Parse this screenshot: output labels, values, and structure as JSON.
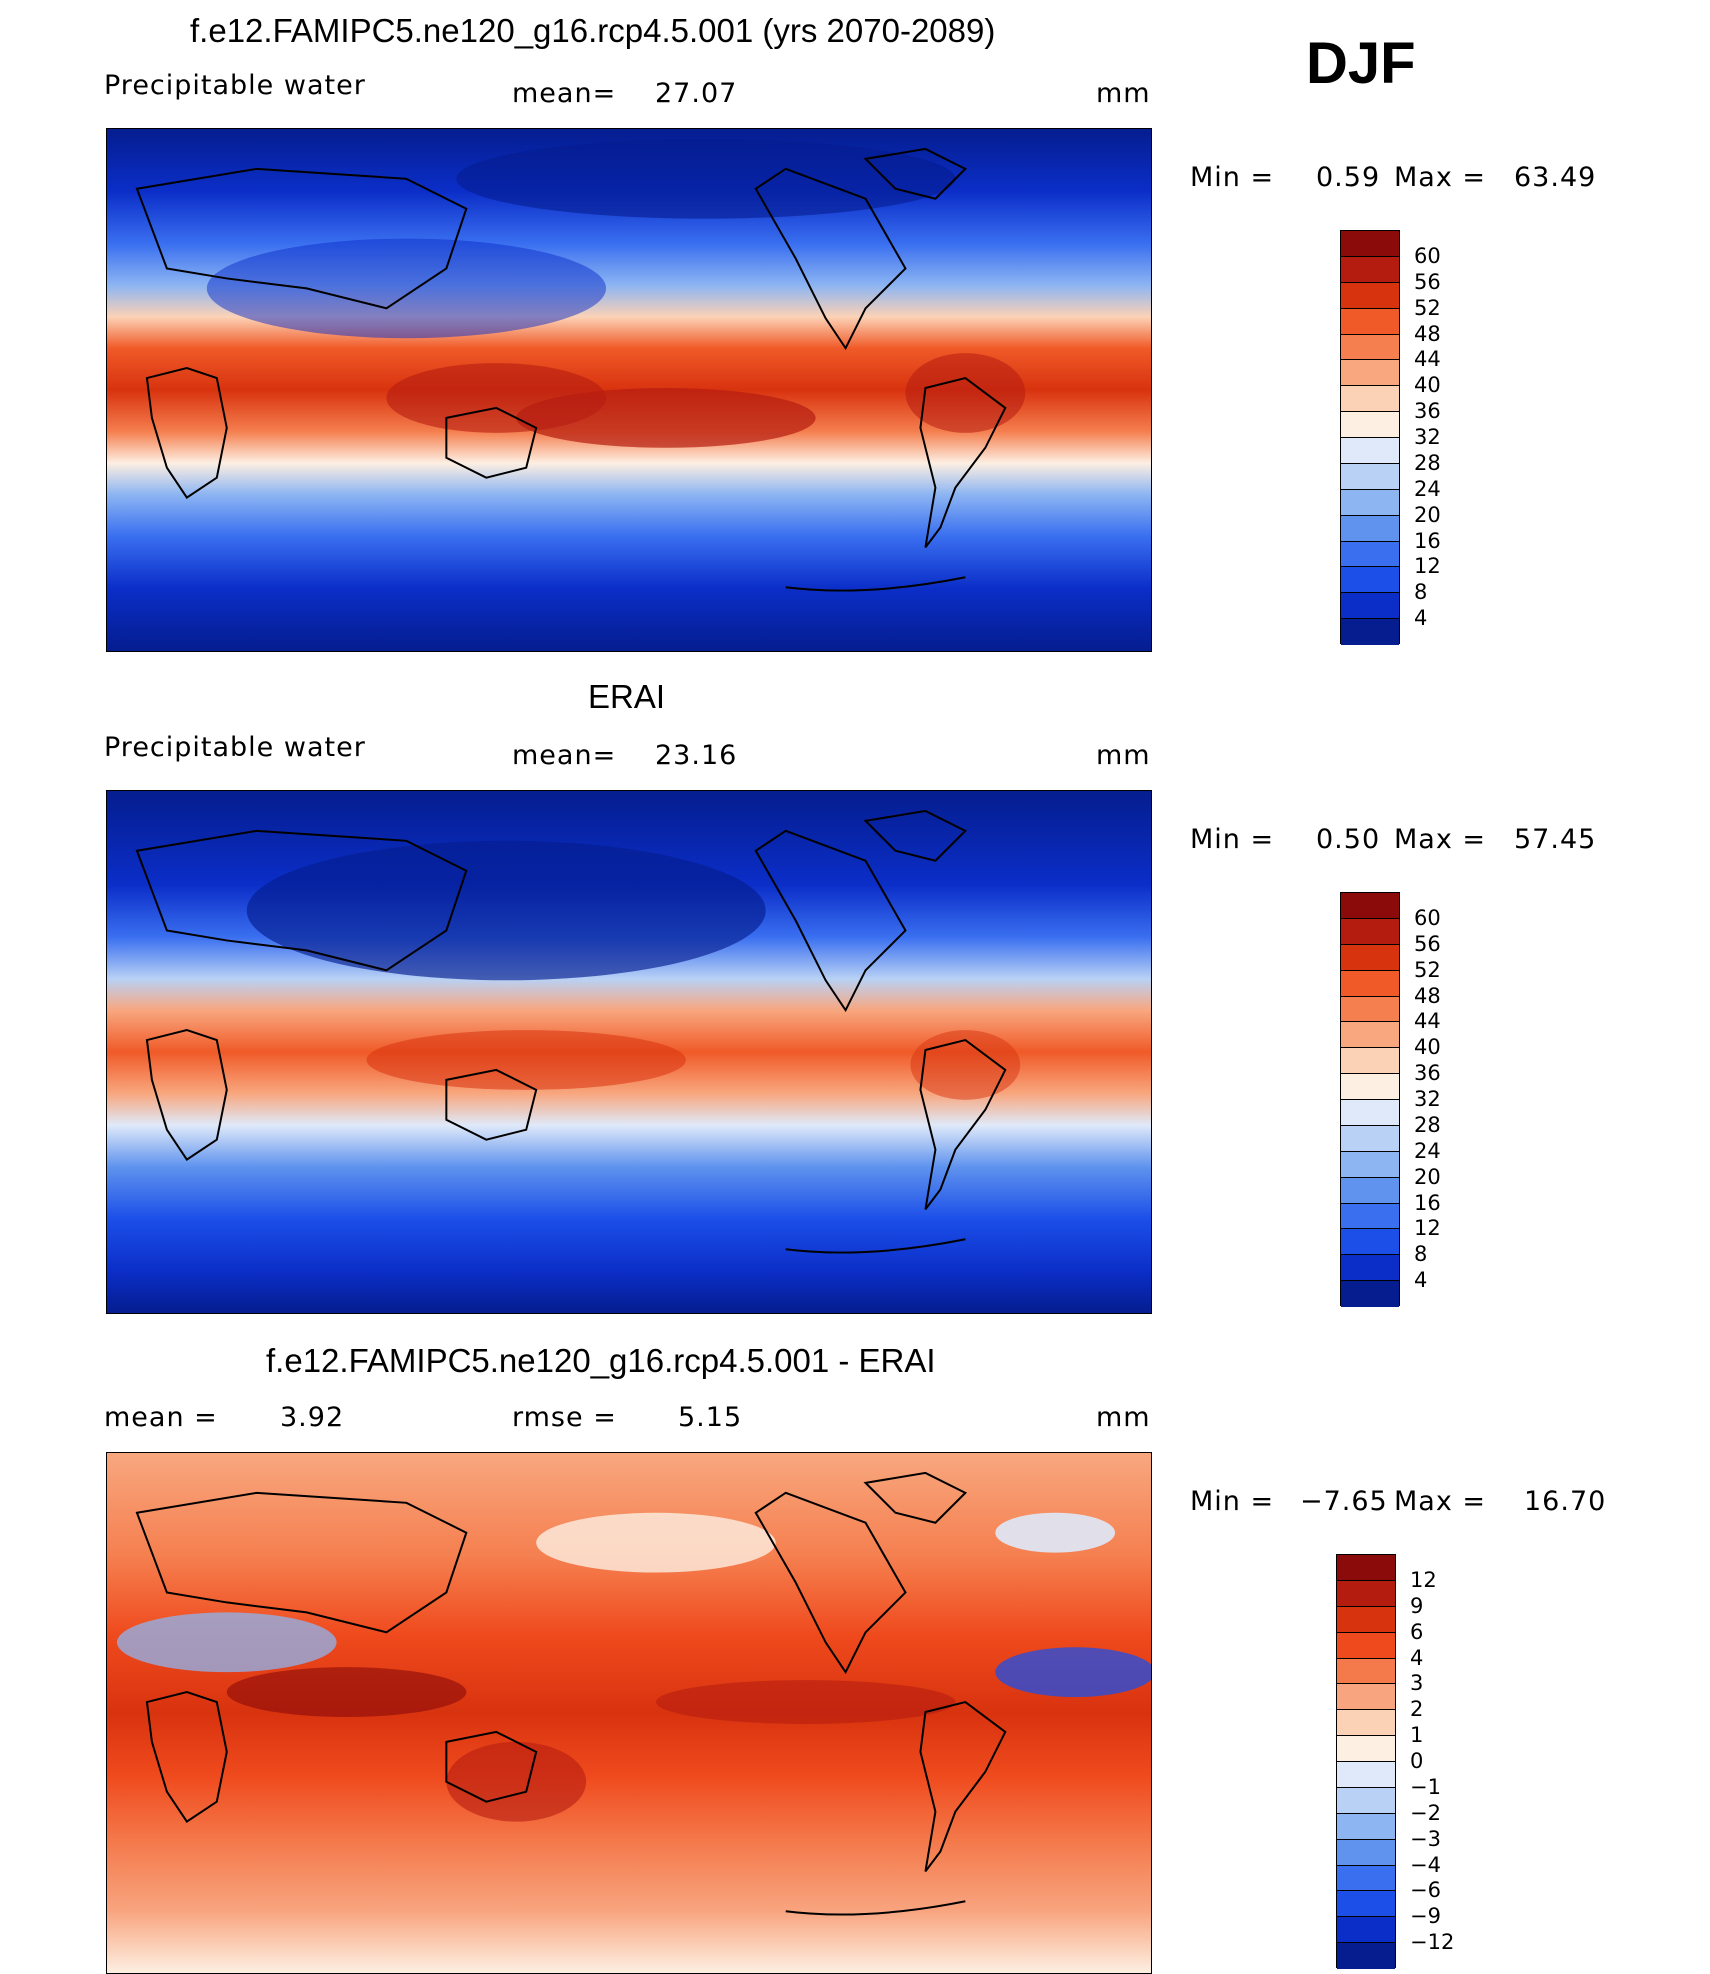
{
  "season": "DJF",
  "panels": [
    {
      "title": "f.e12.FAMIPC5.ne120_g16.rcp4.5.001 (yrs 2070-2089)",
      "left_label": "Precipitable  water",
      "center_label": "mean=",
      "center_value": "27.07",
      "units": "mm",
      "min_label": "Min  =",
      "min_value": "0.59",
      "max_label": "Max  =",
      "max_value": "63.49",
      "colorbar": {
        "colors": [
          "#8b0a0a",
          "#b51c10",
          "#d8330f",
          "#f05a28",
          "#f57f4f",
          "#f8a77f",
          "#fcd2b6",
          "#fdefe2",
          "#dfe9f9",
          "#b8d1f5",
          "#8db5f2",
          "#5f93ee",
          "#3a6ff0",
          "#1c4fe8",
          "#0b2ec8",
          "#051d8f"
        ],
        "labels": [
          "60",
          "56",
          "52",
          "48",
          "44",
          "40",
          "36",
          "32",
          "28",
          "24",
          "20",
          "16",
          "12",
          "8",
          "4"
        ]
      }
    },
    {
      "title": "ERAI",
      "left_label": "Precipitable  water",
      "center_label": "mean=",
      "center_value": "23.16",
      "units": "mm",
      "min_label": "Min  =",
      "min_value": "0.50",
      "max_label": "Max  =",
      "max_value": "57.45",
      "colorbar": {
        "colors": [
          "#8b0a0a",
          "#b51c10",
          "#d8330f",
          "#f05a28",
          "#f57f4f",
          "#f8a77f",
          "#fcd2b6",
          "#fdefe2",
          "#dfe9f9",
          "#b8d1f5",
          "#8db5f2",
          "#5f93ee",
          "#3a6ff0",
          "#1c4fe8",
          "#0b2ec8",
          "#051d8f"
        ],
        "labels": [
          "60",
          "56",
          "52",
          "48",
          "44",
          "40",
          "36",
          "32",
          "28",
          "24",
          "20",
          "16",
          "12",
          "8",
          "4"
        ]
      }
    },
    {
      "title": "f.e12.FAMIPC5.ne120_g16.rcp4.5.001 - ERAI",
      "left_label": "mean  =",
      "left_value": "3.92",
      "center_label": "rmse  =",
      "center_value": "5.15",
      "units": "mm",
      "min_label": "Min  =",
      "min_value": "−7.65",
      "max_label": "Max  =",
      "max_value": "16.70",
      "colorbar": {
        "colors": [
          "#8b0a0a",
          "#b51c10",
          "#d8330f",
          "#ef4a1d",
          "#f47a4c",
          "#f8a47f",
          "#fcd2b6",
          "#fdefe2",
          "#dfe9f9",
          "#b8d1f5",
          "#8db5f2",
          "#5f93ee",
          "#3a6ff0",
          "#1c4fe8",
          "#0b2ec8",
          "#051d8f"
        ],
        "labels": [
          "12",
          "9",
          "6",
          "4",
          "3",
          "2",
          "1",
          "0",
          "−1",
          "−2",
          "−3",
          "−4",
          "−6",
          "−9",
          "−12"
        ]
      }
    }
  ]
}
